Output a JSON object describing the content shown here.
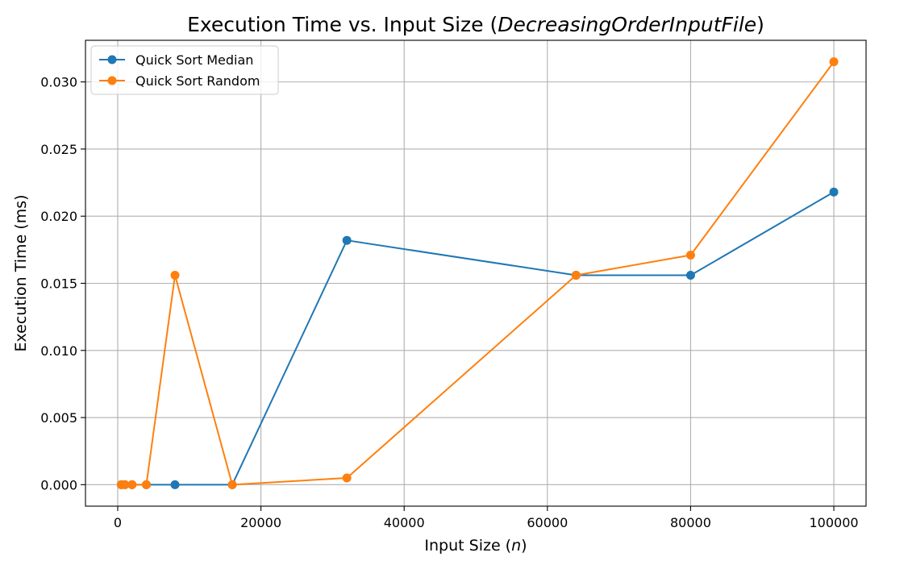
{
  "chart_data": {
    "type": "line",
    "title_prefix": "Execution Time vs. Input Size (",
    "title_italic": "DecreasingOrderInputFile",
    "title_suffix": ")",
    "xlabel_prefix": "Input Size (",
    "xlabel_italic": "n",
    "xlabel_suffix": ")",
    "ylabel": "Execution Time (ms)",
    "xlim": [
      -4500,
      104500
    ],
    "ylim": [
      -0.0016,
      0.0331
    ],
    "xticks": [
      0,
      20000,
      40000,
      60000,
      80000,
      100000
    ],
    "yticks": [
      0.0,
      0.005,
      0.01,
      0.015,
      0.02,
      0.025,
      0.03
    ],
    "xtick_labels": [
      "0",
      "20000",
      "40000",
      "60000",
      "80000",
      "100000"
    ],
    "ytick_labels": [
      "0.000",
      "0.005",
      "0.010",
      "0.015",
      "0.020",
      "0.025",
      "0.030"
    ],
    "grid": true,
    "legend_position": "top-left",
    "series": [
      {
        "name": "Quick Sort Median",
        "color": "#1f77b4",
        "x": [
          500,
          1000,
          2000,
          4000,
          8000,
          16000,
          32000,
          64000,
          80000,
          100000
        ],
        "y": [
          0.0,
          0.0,
          0.0,
          0.0,
          0.0,
          0.0,
          0.0182,
          0.0156,
          0.0156,
          0.0218
        ]
      },
      {
        "name": "Quick Sort Random",
        "color": "#ff7f0e",
        "x": [
          500,
          1000,
          2000,
          4000,
          8000,
          16000,
          32000,
          64000,
          80000,
          100000
        ],
        "y": [
          0.0,
          0.0,
          0.0,
          0.0,
          0.0156,
          0.0,
          0.0005,
          0.0156,
          0.0171,
          0.0315
        ]
      }
    ]
  }
}
